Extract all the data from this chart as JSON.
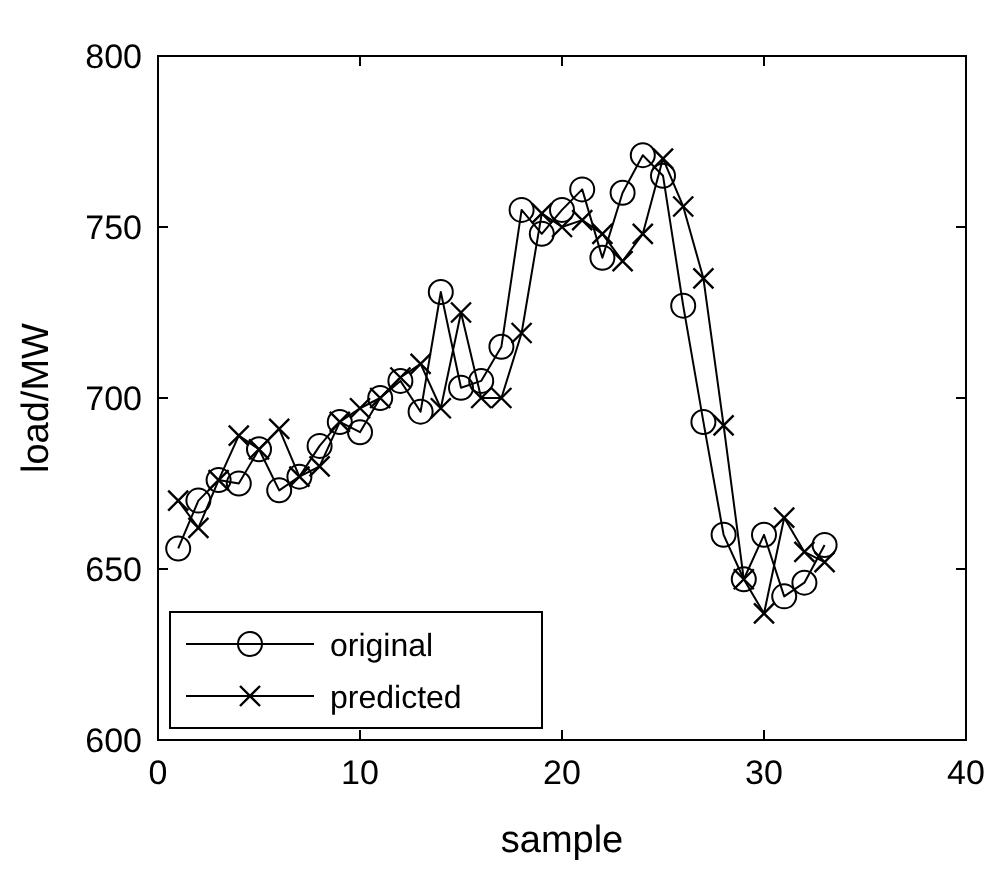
{
  "chart_data": {
    "type": "line",
    "xlabel": "sample",
    "ylabel": "load/MW",
    "x": [
      1,
      2,
      3,
      4,
      5,
      6,
      7,
      8,
      9,
      10,
      11,
      12,
      13,
      14,
      15,
      16,
      17,
      18,
      19,
      20,
      21,
      22,
      23,
      24,
      25,
      26,
      27,
      28,
      29,
      30,
      31,
      32,
      33
    ],
    "xlim": [
      0,
      40
    ],
    "xticks": [
      0,
      10,
      20,
      30,
      40
    ],
    "ylim": [
      600,
      800
    ],
    "yticks": [
      600,
      650,
      700,
      750,
      800
    ],
    "legend": "bottom left",
    "grid": false,
    "line_style": "solid",
    "series": [
      {
        "name": "original",
        "color": "#000000",
        "marker": "circle",
        "values": [
          656,
          670,
          676,
          675,
          685,
          673,
          677,
          686,
          693,
          690,
          700,
          705,
          696,
          731,
          703,
          705,
          715,
          755,
          748,
          755,
          761,
          741,
          760,
          771,
          765,
          727,
          693,
          660,
          647,
          660,
          642,
          646,
          657
        ]
      },
      {
        "name": "predicted",
        "color": "#000000",
        "marker": "cross",
        "values": [
          670,
          662,
          676,
          689,
          685,
          691,
          677,
          680,
          693,
          697,
          700,
          706,
          710,
          697,
          725,
          700,
          700,
          719,
          754,
          750,
          752,
          748,
          740,
          748,
          770,
          756,
          735,
          692,
          647,
          637,
          665,
          655,
          652
        ]
      }
    ]
  }
}
